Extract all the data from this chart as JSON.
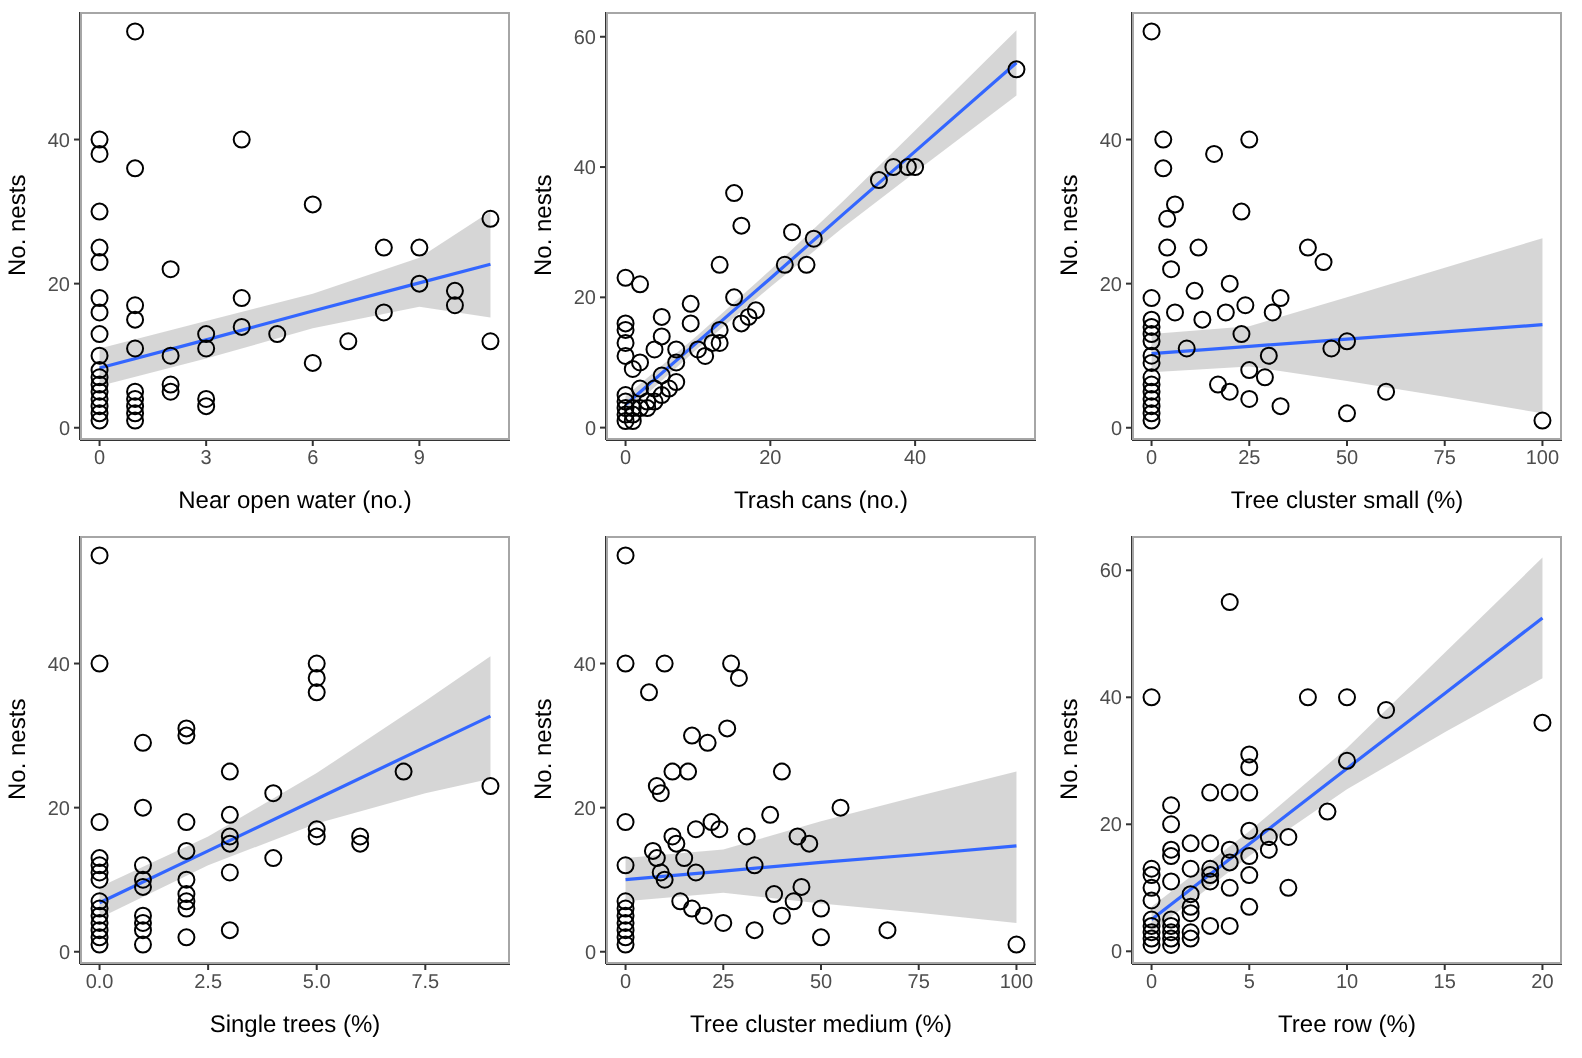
{
  "chart_data": [
    {
      "type": "scatter",
      "xlabel": "Near open water (no.)",
      "ylabel": "No. nests",
      "xlim": [
        -0.55,
        11.55
      ],
      "xticks": [
        0,
        3,
        6,
        9
      ],
      "ylim": [
        -1.7,
        57.7
      ],
      "yticks": [
        0,
        20,
        40
      ],
      "series": [
        {
          "marker": "circle",
          "color": "#000000",
          "x": [
            0,
            0,
            0,
            0,
            0,
            0,
            0,
            0,
            0,
            0,
            0,
            0,
            0,
            0,
            0,
            0,
            0,
            1,
            1,
            1,
            1,
            1,
            1,
            1,
            1,
            1,
            1,
            2,
            2,
            2,
            2,
            3,
            3,
            3,
            3,
            4,
            4,
            4,
            5,
            6,
            6,
            7,
            8,
            8,
            9,
            9,
            10,
            10,
            11,
            11
          ],
          "values": [
            40,
            38,
            30,
            25,
            23,
            18,
            16,
            13,
            10,
            8,
            7,
            6,
            5,
            4,
            3,
            2,
            1,
            55,
            36,
            17,
            15,
            11,
            5,
            4,
            3,
            2,
            1,
            22,
            10,
            6,
            5,
            13,
            11,
            4,
            3,
            40,
            18,
            14,
            13,
            31,
            9,
            12,
            25,
            16,
            25,
            20,
            19,
            17,
            29,
            12
          ]
        },
        {
          "type": "line",
          "marker": "none",
          "color": "#3366ff",
          "x": [
            0,
            3,
            6,
            9,
            11
          ],
          "values": [
            8.3,
            12.2,
            16.2,
            20.1,
            22.7
          ],
          "lower": [
            5.8,
            9.6,
            13.8,
            16.8,
            15.3
          ],
          "upper": [
            11,
            14.8,
            18.6,
            23.6,
            30
          ]
        }
      ]
    },
    {
      "type": "scatter",
      "xlabel": "Trash cans (no.)",
      "ylabel": "No. nests",
      "xlim": [
        -2.7,
        56.7
      ],
      "xticks": [
        0,
        20,
        40
      ],
      "ylim": [
        -1.9,
        63.8
      ],
      "yticks": [
        0,
        20,
        40,
        60
      ],
      "series": [
        {
          "marker": "circle",
          "color": "#000000",
          "x": [
            0,
            0,
            0,
            0,
            0,
            0,
            0,
            0,
            0,
            0,
            1,
            1,
            1,
            1,
            2,
            2,
            2,
            2,
            3,
            3,
            4,
            4,
            4,
            5,
            5,
            5,
            5,
            6,
            7,
            7,
            7,
            9,
            9,
            10,
            11,
            12,
            13,
            13,
            13,
            15,
            15,
            16,
            16,
            17,
            18,
            22,
            23,
            25,
            26,
            35,
            37,
            39,
            40,
            54
          ],
          "values": [
            23,
            16,
            15,
            13,
            11,
            5,
            4,
            3,
            2,
            1,
            9,
            1,
            2,
            3,
            22,
            10,
            6,
            3,
            4,
            3,
            12,
            6,
            4,
            17,
            14,
            8,
            5,
            6,
            12,
            10,
            7,
            19,
            16,
            12,
            11,
            13,
            25,
            15,
            13,
            36,
            20,
            31,
            16,
            17,
            18,
            25,
            30,
            25,
            29,
            38,
            40,
            40,
            40,
            55
          ]
        },
        {
          "type": "line",
          "marker": "none",
          "color": "#3366ff",
          "x": [
            0,
            10,
            20,
            30,
            40,
            54
          ],
          "values": [
            3.5,
            13.2,
            22.9,
            32.7,
            42.4,
            56
          ],
          "lower": [
            2.2,
            12.2,
            21.6,
            30.7,
            39.2,
            51
          ],
          "upper": [
            4.8,
            14.2,
            24.2,
            34.7,
            45.6,
            61
          ]
        }
      ]
    },
    {
      "type": "scatter",
      "xlabel": "Tree cluster small (%)",
      "ylabel": "No. nests",
      "xlim": [
        -5,
        105
      ],
      "xticks": [
        0,
        25,
        50,
        75,
        100
      ],
      "ylim": [
        -1.7,
        57.7
      ],
      "yticks": [
        0,
        20,
        40
      ],
      "series": [
        {
          "marker": "circle",
          "color": "#000000",
          "x": [
            0,
            0,
            0,
            0,
            0,
            0,
            0,
            0,
            0,
            0,
            0,
            0,
            0,
            0,
            0,
            3,
            3,
            4,
            4,
            5,
            6,
            6,
            9,
            11,
            12,
            13,
            16,
            17,
            19,
            20,
            20,
            23,
            23,
            24,
            25,
            25,
            25,
            29,
            30,
            31,
            33,
            33,
            40,
            44,
            46,
            50,
            50,
            60,
            100
          ],
          "values": [
            55,
            18,
            15,
            14,
            13,
            12,
            10,
            9,
            7,
            6,
            5,
            4,
            3,
            2,
            1,
            40,
            36,
            29,
            25,
            22,
            31,
            16,
            11,
            19,
            25,
            15,
            38,
            6,
            16,
            20,
            5,
            30,
            13,
            17,
            40,
            8,
            4,
            7,
            10,
            16,
            18,
            3,
            25,
            23,
            11,
            12,
            2,
            5,
            1
          ]
        },
        {
          "type": "line",
          "marker": "none",
          "color": "#3366ff",
          "x": [
            0,
            25,
            50,
            75,
            100
          ],
          "values": [
            10.3,
            11.3,
            12.3,
            13.3,
            14.3
          ],
          "lower": [
            7.7,
            8.5,
            6.5,
            4.3,
            2
          ],
          "upper": [
            13,
            14.1,
            18.1,
            22.2,
            26.3
          ]
        }
      ]
    },
    {
      "type": "scatter",
      "xlabel": "Single trees (%)",
      "ylabel": "No. nests",
      "xlim": [
        -0.45,
        9.45
      ],
      "xticks": [
        {
          "value": 0,
          "label": "0.0"
        },
        {
          "value": 2.5,
          "label": "2.5"
        },
        {
          "value": 5,
          "label": "5.0"
        },
        {
          "value": 7.5,
          "label": "7.5"
        }
      ],
      "ylim": [
        -1.7,
        57.7
      ],
      "yticks": [
        0,
        20,
        40
      ],
      "series": [
        {
          "marker": "circle",
          "color": "#000000",
          "x": [
            0,
            0,
            0,
            0,
            0,
            0,
            0,
            0,
            0,
            0,
            0,
            0,
            0,
            0,
            1,
            1,
            1,
            1,
            1,
            1,
            1,
            1,
            1,
            2,
            2,
            2,
            2,
            2,
            2,
            2,
            2,
            2,
            3,
            3,
            3,
            3,
            3,
            3,
            4,
            4,
            5,
            5,
            5,
            5,
            5,
            6,
            6,
            7,
            9
          ],
          "values": [
            55,
            40,
            18,
            13,
            12,
            11,
            10,
            7,
            6,
            5,
            4,
            3,
            2,
            1,
            29,
            20,
            12,
            10,
            9,
            5,
            4,
            3,
            1,
            31,
            30,
            18,
            14,
            10,
            8,
            7,
            6,
            2,
            25,
            19,
            16,
            15,
            11,
            3,
            22,
            13,
            40,
            38,
            36,
            17,
            16,
            16,
            15,
            25,
            23
          ]
        },
        {
          "type": "line",
          "marker": "none",
          "color": "#3366ff",
          "x": [
            0,
            2.5,
            5,
            7.5,
            9
          ],
          "values": [
            6.8,
            14,
            21.2,
            28.4,
            32.7
          ],
          "lower": [
            4.7,
            12,
            17.8,
            22,
            24
          ],
          "upper": [
            9,
            16,
            24.8,
            34.8,
            41
          ]
        }
      ]
    },
    {
      "type": "scatter",
      "xlabel": "Tree cluster medium (%)",
      "ylabel": "No. nests",
      "xlim": [
        -5,
        105
      ],
      "xticks": [
        0,
        25,
        50,
        75,
        100
      ],
      "ylim": [
        -1.7,
        57.7
      ],
      "yticks": [
        0,
        20,
        40
      ],
      "series": [
        {
          "marker": "circle",
          "color": "#000000",
          "x": [
            0,
            0,
            0,
            0,
            0,
            0,
            0,
            0,
            0,
            0,
            0,
            6,
            10,
            7,
            8,
            8,
            9,
            9,
            10,
            12,
            12,
            13,
            14,
            15,
            16,
            17,
            17,
            18,
            18,
            20,
            21,
            22,
            24,
            25,
            26,
            27,
            29,
            31,
            33,
            33,
            37,
            38,
            40,
            40,
            43,
            44,
            45,
            47,
            50,
            50,
            55,
            67,
            100
          ],
          "values": [
            55,
            40,
            18,
            12,
            7,
            6,
            5,
            4,
            3,
            2,
            1,
            36,
            40,
            14,
            13,
            23,
            22,
            11,
            10,
            25,
            16,
            15,
            7,
            13,
            25,
            30,
            6,
            17,
            11,
            5,
            29,
            18,
            17,
            4,
            31,
            40,
            38,
            16,
            12,
            3,
            19,
            8,
            25,
            5,
            7,
            16,
            9,
            15,
            6,
            2,
            20,
            3,
            1
          ]
        },
        {
          "type": "line",
          "marker": "none",
          "color": "#3366ff",
          "x": [
            0,
            25,
            50,
            75,
            100
          ],
          "values": [
            10,
            11.2,
            12.4,
            13.5,
            14.7
          ],
          "lower": [
            7,
            8.2,
            6.7,
            5.4,
            4
          ],
          "upper": [
            13,
            14.2,
            18.1,
            21.6,
            25
          ]
        }
      ]
    },
    {
      "type": "scatter",
      "xlabel": "Tree row (%)",
      "ylabel": "No. nests",
      "xlim": [
        -1,
        21
      ],
      "xticks": [
        0,
        5,
        10,
        15,
        20
      ],
      "ylim": [
        -2,
        65.4
      ],
      "yticks": [
        0,
        20,
        40,
        60
      ],
      "series": [
        {
          "marker": "circle",
          "color": "#000000",
          "x": [
            0,
            0,
            0,
            0,
            0,
            0,
            0,
            0,
            0,
            0,
            1,
            1,
            1,
            1,
            1,
            1,
            1,
            1,
            1,
            1,
            2,
            2,
            2,
            2,
            2,
            2,
            2,
            3,
            3,
            3,
            3,
            3,
            3,
            4,
            4,
            4,
            4,
            4,
            4,
            5,
            5,
            5,
            5,
            5,
            5,
            5,
            6,
            6,
            7,
            7,
            8,
            9,
            10,
            10,
            12,
            20
          ],
          "values": [
            40,
            13,
            12,
            10,
            8,
            5,
            4,
            3,
            2,
            1,
            23,
            20,
            16,
            15,
            11,
            5,
            4,
            3,
            2,
            1,
            17,
            13,
            9,
            7,
            6,
            3,
            2,
            25,
            17,
            13,
            12,
            11,
            4,
            55,
            25,
            16,
            14,
            10,
            4,
            31,
            29,
            25,
            19,
            15,
            12,
            7,
            18,
            16,
            18,
            10,
            40,
            22,
            40,
            30,
            38,
            36
          ]
        },
        {
          "type": "line",
          "marker": "none",
          "color": "#3366ff",
          "x": [
            0,
            5,
            10,
            15,
            20
          ],
          "values": [
            5,
            16.9,
            28.8,
            40.6,
            52.5
          ],
          "lower": [
            3,
            15,
            25.5,
            34.5,
            43
          ],
          "upper": [
            7,
            18.9,
            32,
            47,
            62
          ]
        }
      ]
    }
  ]
}
